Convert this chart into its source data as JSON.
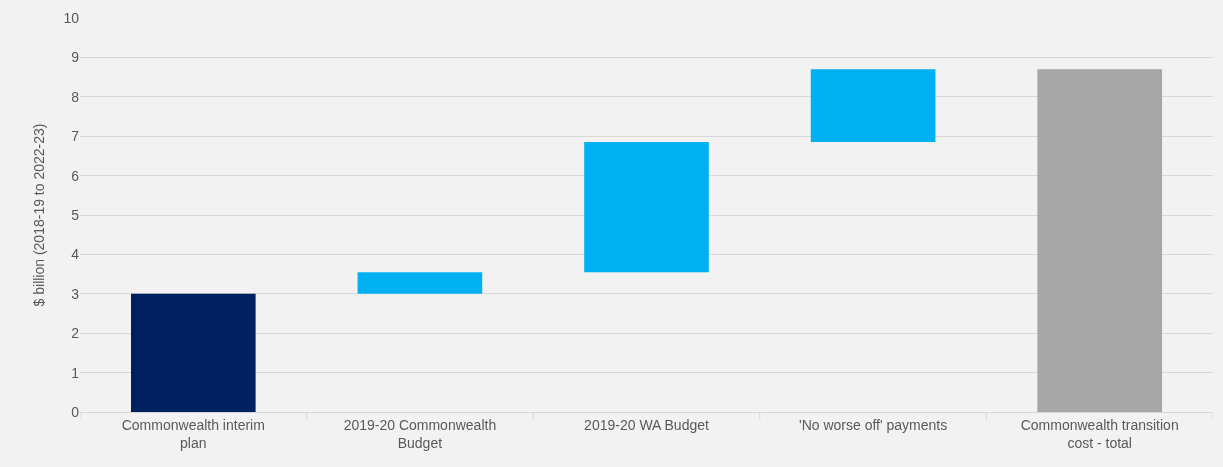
{
  "chart_data": {
    "type": "bar",
    "ylabel": "$ billion (2018-19 to 2022-23)",
    "categories": [
      "Commonwealth interim plan",
      "2019-20 Commonwealth Budget",
      "2019-20 WA Budget",
      "'No worse off' payments",
      "Commonwealth transition cost - total"
    ],
    "values": [
      3.0,
      0.55,
      3.3,
      1.85,
      8.7
    ],
    "base": [
      0,
      3.0,
      3.55,
      6.85,
      0
    ],
    "colors": [
      "#002060",
      "#00b0f0",
      "#00b0f0",
      "#00b0f0",
      "#a6a6a6"
    ],
    "ylim": [
      0,
      10
    ],
    "yticks": [
      0,
      1,
      2,
      3,
      4,
      5,
      6,
      7,
      8,
      9,
      10
    ],
    "grid": "y"
  }
}
